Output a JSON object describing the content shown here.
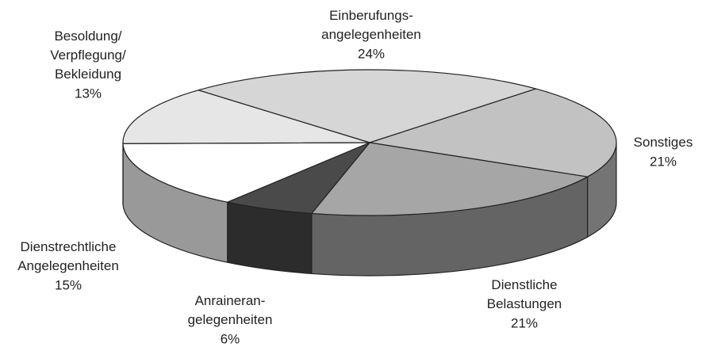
{
  "chart_data": {
    "type": "pie",
    "categories": [
      "Einberufungs-\nangelegenheiten",
      "Sonstiges",
      "Dienstliche\nBelastungen",
      "Anraineran-\ngelegenheiten",
      "Dienstrechtliche\nAngelegenheiten",
      "Besoldung/\nVerpflegung/\nBekleidung"
    ],
    "values": [
      24,
      21,
      21,
      6,
      15,
      13
    ],
    "value_labels": [
      "24%",
      "21%",
      "21%",
      "6%",
      "15%",
      "13%"
    ],
    "colors": [
      "#d6d6d6",
      "#c2c2c2",
      "#a6a6a6",
      "#4a4a4a",
      "#ffffff",
      "#e6e6e6"
    ]
  }
}
